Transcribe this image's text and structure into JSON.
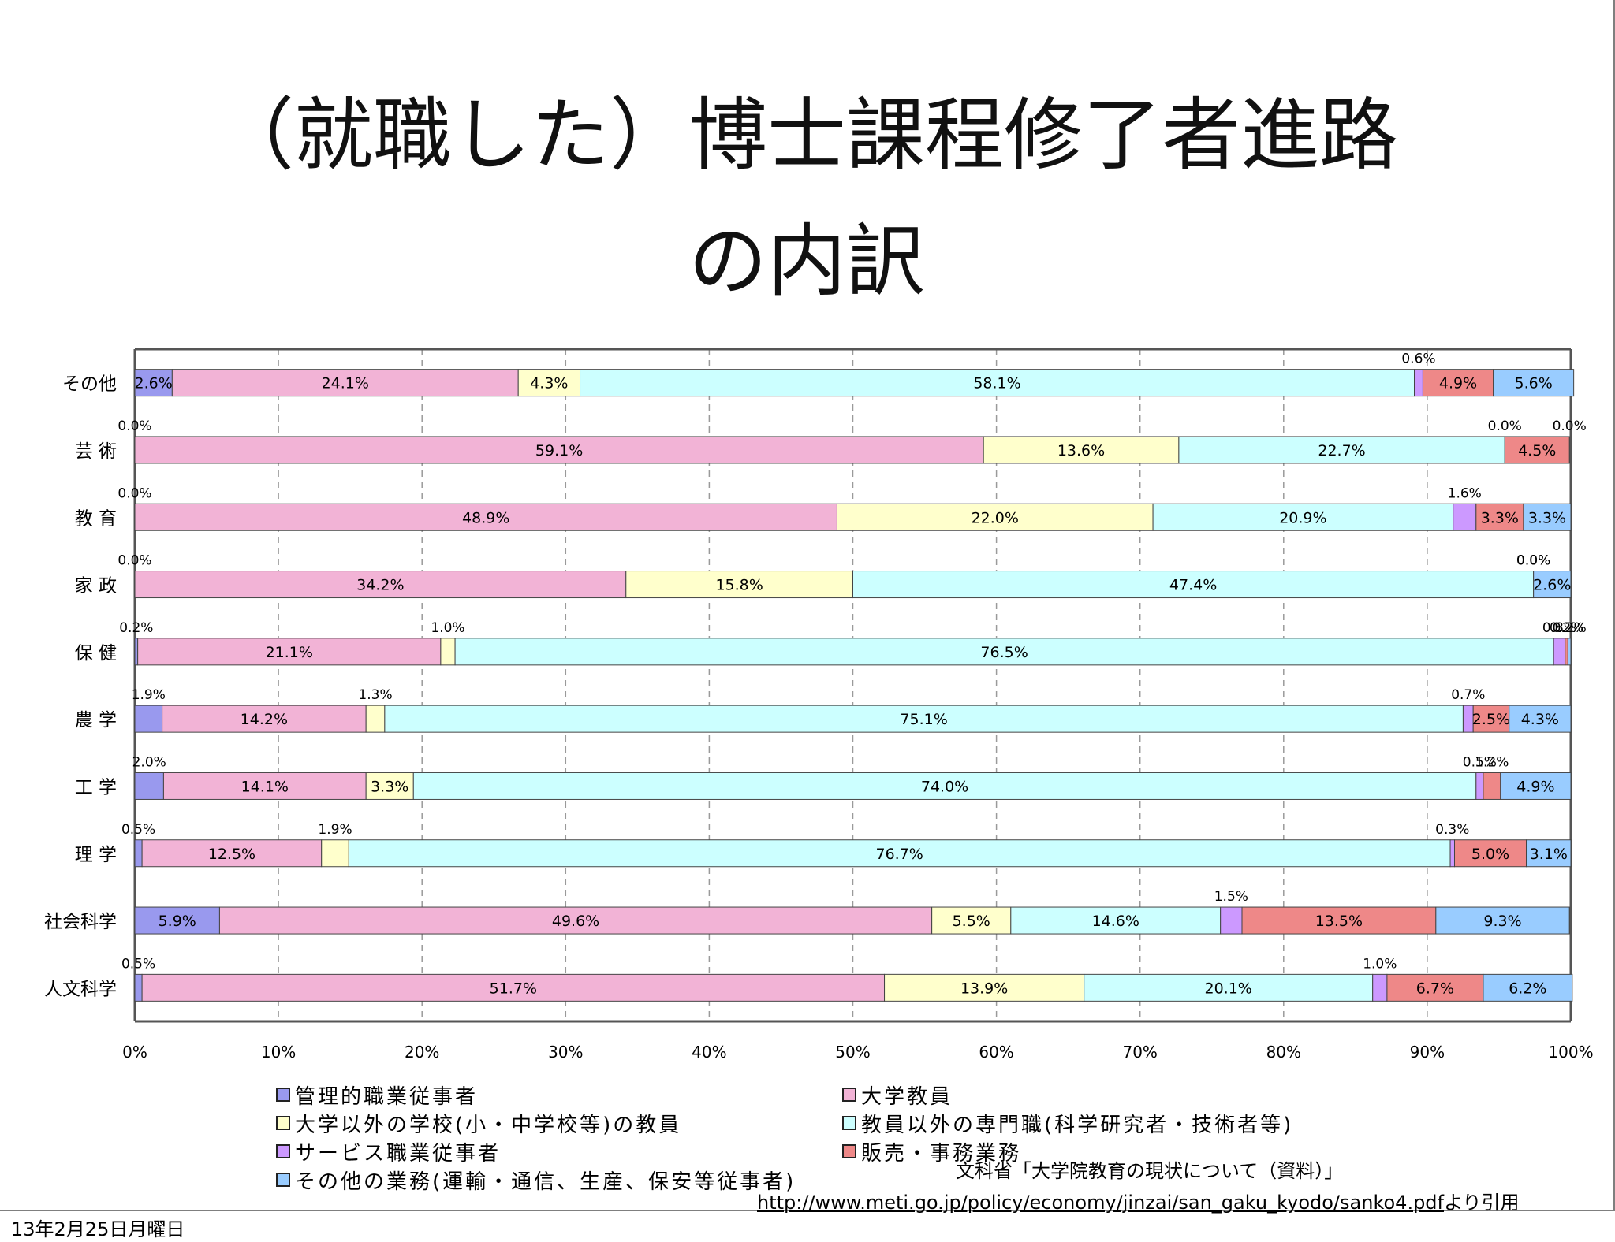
{
  "slide": {
    "title_line1": "（就職した）博士課程修了者進路",
    "title_line2": "の内訳",
    "source_line1": "文科省「大学院教育の現状について（資料）」",
    "source_url": "http://www.meti.go.jp/policy/economy/jinzai/san_gaku_kyodo/sanko4.pdf",
    "source_suffix": "より引用",
    "footer_date": "13年2月25日月曜日"
  },
  "legend": [
    {
      "label": "管理的職業従事者",
      "color": "#9999ee"
    },
    {
      "label": "大学教員",
      "color": "#f2b3d6"
    },
    {
      "label": "大学以外の学校(小・中学校等)の教員",
      "color": "#ffffcc"
    },
    {
      "label": "教員以外の専門職(科学研究者・技術者等)",
      "color": "#ccffff"
    },
    {
      "label": "サービス職業従事者",
      "color": "#cc99ff"
    },
    {
      "label": "販売・事務業務",
      "color": "#ee8888"
    },
    {
      "label": "その他の業務(運輸・通信、生産、保安等従事者)",
      "color": "#99ccff"
    }
  ],
  "chart_data": {
    "type": "bar",
    "orientation": "horizontal",
    "stacked": "percent",
    "categories": [
      "その他",
      "芸 術",
      "教 育",
      "家 政",
      "保 健",
      "農 学",
      "工 学",
      "理 学",
      "社会科学",
      "人文科学"
    ],
    "x_ticks": [
      "0%",
      "10%",
      "20%",
      "30%",
      "40%",
      "50%",
      "60%",
      "70%",
      "80%",
      "90%",
      "100%"
    ],
    "xlim": [
      0,
      100
    ],
    "grid": "vertical dashed",
    "legend_position": "bottom",
    "colors": [
      "#9999ee",
      "#f2b3d6",
      "#ffffcc",
      "#ccffff",
      "#cc99ff",
      "#ee8888",
      "#99ccff"
    ],
    "series": [
      {
        "name": "管理的職業従事者",
        "values": [
          2.6,
          0.0,
          0.0,
          0.0,
          0.2,
          1.9,
          2.0,
          0.5,
          5.9,
          0.5
        ],
        "labels": [
          "2.6%",
          "0.0%",
          "0.0%",
          "0.0%",
          "0.2%",
          "1.9%",
          "2.0%",
          "0.5%",
          "5.9%",
          "0.5%"
        ]
      },
      {
        "name": "大学教員",
        "values": [
          24.1,
          59.1,
          48.9,
          34.2,
          21.1,
          14.2,
          14.1,
          12.5,
          49.6,
          51.7
        ],
        "labels": [
          "24.1%",
          "59.1%",
          "48.9%",
          "34.2%",
          "21.1%",
          "14.2%",
          "14.1%",
          "12.5%",
          "49.6%",
          "51.7%"
        ]
      },
      {
        "name": "大学以外の学校(小・中学校等)の教員",
        "values": [
          4.3,
          13.6,
          22.0,
          15.8,
          1.0,
          1.3,
          3.3,
          1.9,
          5.5,
          13.9
        ],
        "labels": [
          "4.3%",
          "13.6%",
          "22.0%",
          "15.8%",
          "1.0%",
          "1.3%",
          "3.3%",
          "1.9%",
          "5.5%",
          "13.9%"
        ]
      },
      {
        "name": "教員以外の専門職(科学研究者・技術者等)",
        "values": [
          58.1,
          22.7,
          20.9,
          47.4,
          76.5,
          75.1,
          74.0,
          76.7,
          14.6,
          20.1
        ],
        "labels": [
          "58.1%",
          "22.7%",
          "20.9%",
          "47.4%",
          "76.5%",
          "75.1%",
          "74.0%",
          "76.7%",
          "14.6%",
          "20.1%"
        ]
      },
      {
        "name": "サービス職業従事者",
        "values": [
          0.6,
          0.0,
          1.6,
          0.0,
          0.8,
          0.7,
          0.5,
          0.3,
          1.5,
          1.0
        ],
        "labels": [
          "0.6%",
          "0.0%",
          "1.6%",
          "0.0%",
          "0.8%",
          "0.7%",
          "0.5%",
          "0.3%",
          "1.5%",
          "1.0%"
        ]
      },
      {
        "name": "販売・事務業務",
        "values": [
          4.9,
          4.5,
          3.3,
          0.0,
          0.2,
          2.5,
          1.2,
          5.0,
          13.5,
          6.7
        ],
        "labels": [
          "4.9%",
          "4.5%",
          "3.3%",
          "0.0%",
          "0.2%",
          "2.5%",
          "1.2%",
          "5.0%",
          "13.5%",
          "6.7%"
        ]
      },
      {
        "name": "その他の業務(運輸・通信、生産、保安等従事者)",
        "values": [
          5.6,
          0.0,
          3.3,
          2.6,
          0.2,
          4.3,
          4.9,
          3.1,
          9.3,
          6.2
        ],
        "labels": [
          "5.6%",
          "0.0%",
          "3.3%",
          "2.6%",
          "0.2%",
          "4.3%",
          "4.9%",
          "3.1%",
          "9.3%",
          "6.2%"
        ]
      }
    ]
  }
}
